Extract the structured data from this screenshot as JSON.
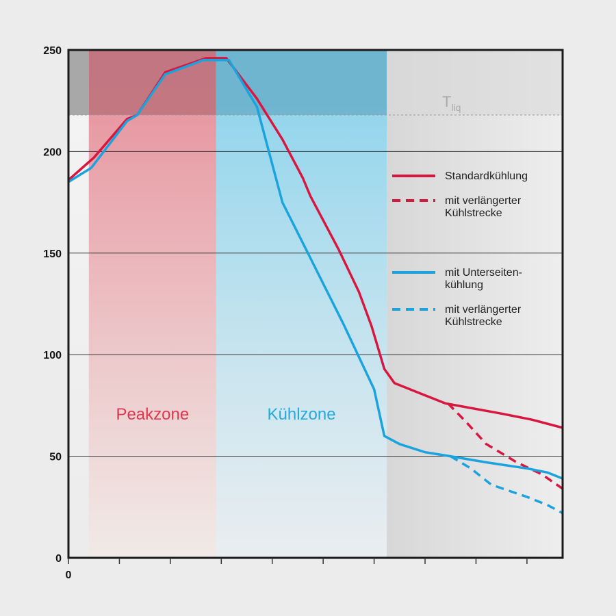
{
  "chart_data": {
    "type": "line",
    "title": "",
    "xlabel": "",
    "ylabel": "",
    "xlim": [
      0,
      9.7
    ],
    "ylim": [
      0,
      250
    ],
    "x_ticks": [
      0,
      1,
      2,
      3,
      4,
      5,
      6,
      7,
      8,
      9
    ],
    "x_tick_labels": [
      "0"
    ],
    "y_ticks": [
      0,
      50,
      100,
      150,
      200,
      250
    ],
    "y_tick_labels": [
      "0",
      "50",
      "100",
      "150",
      "200",
      "250"
    ],
    "grid": "horizontal",
    "legend_placement": "right",
    "reference_line": {
      "label_main": "T",
      "label_sub": "liq",
      "y": 218
    },
    "zones": [
      {
        "label": "",
        "x": [
          0,
          0.4
        ],
        "color": "#9a9a9a"
      },
      {
        "label": "Peakzone",
        "x": [
          0.4,
          2.9
        ],
        "color": "#e0364f"
      },
      {
        "label": "Kühlzone",
        "x": [
          2.9,
          6.25
        ],
        "color": "#27a9dd"
      },
      {
        "label": "",
        "x": [
          6.25,
          9.7
        ],
        "color": "#cfcfcf"
      }
    ],
    "series": [
      {
        "name": "Standardkühlung",
        "color": "#d8173f",
        "dash": false,
        "points": [
          [
            0,
            186
          ],
          [
            0.5,
            197
          ],
          [
            1.15,
            216
          ],
          [
            1.35,
            218
          ],
          [
            1.9,
            239
          ],
          [
            2.7,
            246
          ],
          [
            3.1,
            246
          ],
          [
            3.7,
            226
          ],
          [
            4.2,
            206
          ],
          [
            4.6,
            187
          ],
          [
            4.75,
            178
          ],
          [
            5.3,
            152
          ],
          [
            5.7,
            131
          ],
          [
            5.95,
            114
          ],
          [
            6.2,
            93
          ],
          [
            6.4,
            86
          ],
          [
            6.9,
            81
          ],
          [
            7.4,
            76
          ],
          [
            8.5,
            71
          ],
          [
            9.1,
            68
          ],
          [
            9.7,
            64
          ]
        ]
      },
      {
        "name": "mit verlängerter Kühlstrecke",
        "color": "#d8173f",
        "dash": true,
        "points": [
          [
            7.45,
            76
          ],
          [
            7.8,
            67
          ],
          [
            8.2,
            56
          ],
          [
            8.8,
            47
          ],
          [
            9.3,
            41
          ],
          [
            9.7,
            34
          ]
        ]
      },
      {
        "name": "mit Unterseiten-kühlung",
        "color": "#1aa3dd",
        "dash": false,
        "points": [
          [
            0,
            185
          ],
          [
            0.45,
            192
          ],
          [
            1.15,
            215
          ],
          [
            1.35,
            218
          ],
          [
            1.9,
            238
          ],
          [
            2.65,
            245
          ],
          [
            3.15,
            245
          ],
          [
            3.7,
            222
          ],
          [
            4.2,
            175
          ],
          [
            4.8,
            145
          ],
          [
            5.4,
            115
          ],
          [
            6.0,
            83
          ],
          [
            6.2,
            60
          ],
          [
            6.5,
            56
          ],
          [
            7.0,
            52
          ],
          [
            7.5,
            50
          ],
          [
            8.2,
            47
          ],
          [
            9.0,
            44
          ],
          [
            9.4,
            42
          ],
          [
            9.7,
            39
          ]
        ]
      },
      {
        "name": "mit verlängerter Kühlstrecke",
        "color": "#1aa3dd",
        "dash": true,
        "points": [
          [
            7.5,
            50
          ],
          [
            7.9,
            44
          ],
          [
            8.3,
            36
          ],
          [
            9.0,
            30
          ],
          [
            9.4,
            26
          ],
          [
            9.7,
            22
          ]
        ]
      }
    ],
    "legend": [
      {
        "lines": [
          "Standardkühlung"
        ]
      },
      {
        "lines": [
          "mit verlängerter",
          "Kühlstrecke"
        ]
      },
      {
        "lines": [
          "mit Unterseiten-",
          "kühlung"
        ]
      },
      {
        "lines": [
          "mit verlängerter",
          "Kühlstrecke"
        ]
      }
    ]
  }
}
